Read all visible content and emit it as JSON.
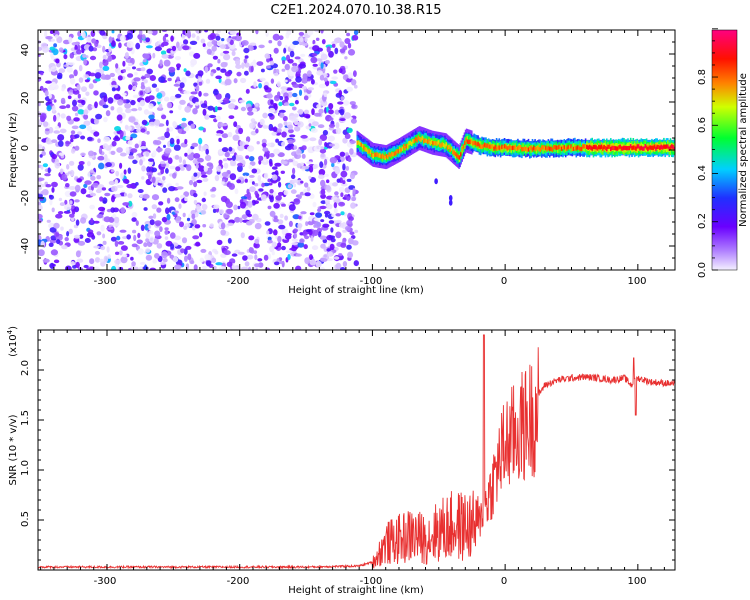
{
  "title": "C2E1.2024.070.10.38.R15",
  "top_panel": {
    "xlabel": "Height of straight line (km)",
    "ylabel": "Frequency (Hz)",
    "colorbar_label": "Normalized spectral amplitude",
    "x_ticks": [
      "-300",
      "-200",
      "-100",
      "0",
      "100"
    ],
    "y_ticks": [
      "40",
      "20",
      "0",
      "-20",
      "-40"
    ],
    "colorbar_ticks": [
      "0.0",
      "0.2",
      "0.4",
      "0.6",
      "0.8"
    ]
  },
  "bottom_panel": {
    "xlabel": "Height of straight line (km)",
    "ylabel": "SNR (10 * v/v)",
    "y_multiplier": "(x10",
    "y_multiplier_exp": "4",
    "y_multiplier_close": ")",
    "x_ticks": [
      "-300",
      "-200",
      "-100",
      "0",
      "100"
    ],
    "y_ticks": [
      "2.0",
      "1.5",
      "1.0",
      "0.5"
    ]
  },
  "chart_data": [
    {
      "type": "heatmap",
      "xlim": [
        -352,
        128
      ],
      "ylim": [
        -50,
        50
      ],
      "colorbar_range": [
        0.0,
        1.0
      ],
      "colormap": [
        "#e8e0ff",
        "#b080ff",
        "#7000ff",
        "#2040ff",
        "#00e0ff",
        "#00ff40",
        "#ffff00",
        "#ff8000",
        "#ff0000",
        "#ff0080"
      ],
      "regions": [
        {
          "x_range": [
            -352,
            -112
          ],
          "description_values": "scattered amplitudes 0.0-0.3 across all frequencies"
        },
        {
          "x_range": [
            -112,
            128
          ],
          "description_values": "signal band near 0 Hz, amplitude 0.3-0.9"
        }
      ],
      "ridge": [
        {
          "x": -112,
          "y": 3
        },
        {
          "x": -100,
          "y": -2
        },
        {
          "x": -90,
          "y": -3
        },
        {
          "x": -80,
          "y": 0
        },
        {
          "x": -65,
          "y": 5
        },
        {
          "x": -55,
          "y": 3
        },
        {
          "x": -45,
          "y": 2
        },
        {
          "x": -35,
          "y": -3
        },
        {
          "x": -30,
          "y": 4
        },
        {
          "x": -20,
          "y": 2
        },
        {
          "x": -10,
          "y": 1
        },
        {
          "x": 0,
          "y": 1
        },
        {
          "x": 20,
          "y": 0.5
        },
        {
          "x": 50,
          "y": 1
        },
        {
          "x": 90,
          "y": 1
        },
        {
          "x": 128,
          "y": 1
        }
      ]
    },
    {
      "type": "line",
      "xlim": [
        -352,
        128
      ],
      "ylim": [
        0,
        2.4
      ],
      "color": "#e83030",
      "series": [
        {
          "x": [
            -352,
            -300,
            -250,
            -200,
            -150,
            -110,
            -100,
            -90,
            -80,
            -70,
            -60,
            -50,
            -40,
            -30,
            -25,
            -20,
            -16,
            -12,
            -8,
            -4,
            0,
            10,
            20,
            30,
            40,
            50,
            60,
            70,
            80,
            90,
            95,
            100,
            110,
            120,
            128
          ],
          "y": [
            0.03,
            0.03,
            0.03,
            0.03,
            0.03,
            0.04,
            0.08,
            0.3,
            0.35,
            0.4,
            0.35,
            0.45,
            0.5,
            0.5,
            0.5,
            0.5,
            0.7,
            0.8,
            1.0,
            1.2,
            1.35,
            1.5,
            1.65,
            1.85,
            1.9,
            1.92,
            1.93,
            1.92,
            1.9,
            1.92,
            1.85,
            1.92,
            1.88,
            1.87,
            1.86
          ]
        }
      ]
    }
  ]
}
